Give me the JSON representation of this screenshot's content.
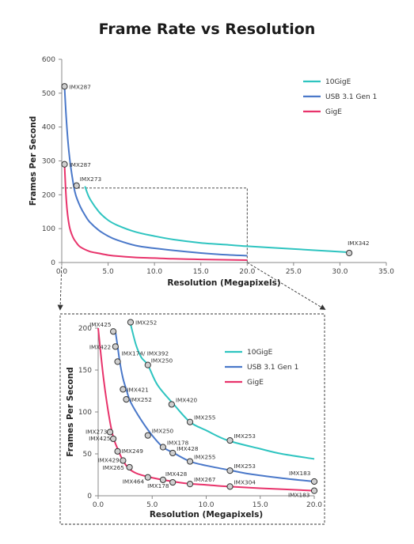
{
  "title": "Frame Rate vs Resolution",
  "colors": {
    "tengige": "#2ec4c0",
    "usb": "#4a78c9",
    "gige": "#e8336b"
  },
  "chart_data": [
    {
      "id": "main",
      "type": "line",
      "xlabel": "Resolution (Megapixels)",
      "ylabel": "Frames Per Second",
      "xlim": [
        0,
        35
      ],
      "ylim": [
        0,
        600
      ],
      "xticks": [
        "0.0",
        "5.0",
        "10.0",
        "15.0",
        "20.0",
        "25.0",
        "30.0",
        "35.0"
      ],
      "yticks": [
        "0",
        "100",
        "200",
        "300",
        "400",
        "500",
        "600"
      ],
      "legend_position": "top-right",
      "grid": false,
      "series": [
        {
          "name": "10GigE",
          "color": "#2ec4c0",
          "x": [
            2.5,
            3,
            4,
            5,
            6,
            8,
            10,
            12,
            15,
            18,
            20,
            25,
            28,
            31
          ],
          "y": [
            225,
            190,
            150,
            125,
            110,
            90,
            78,
            68,
            58,
            52,
            48,
            40,
            35,
            30
          ]
        },
        {
          "name": "USB 3.1 Gen 1",
          "color": "#4a78c9",
          "x": [
            0.3,
            0.5,
            0.8,
            1.2,
            1.5,
            2,
            2.5,
            3,
            4,
            5,
            6,
            8,
            10,
            12,
            15,
            17,
            20
          ],
          "y": [
            520,
            420,
            320,
            240,
            200,
            165,
            140,
            120,
            95,
            78,
            66,
            50,
            42,
            36,
            28,
            24,
            20
          ]
        },
        {
          "name": "GigE",
          "color": "#e8336b",
          "x": [
            0.3,
            0.5,
            0.8,
            1.2,
            1.6,
            2,
            3,
            4,
            5,
            6,
            8,
            10,
            12,
            15,
            20
          ],
          "y": [
            290,
            180,
            110,
            75,
            58,
            46,
            33,
            27,
            22,
            19,
            15,
            13,
            11,
            9,
            7
          ]
        }
      ],
      "points": [
        {
          "label": "IMX287",
          "x": 0.3,
          "y": 520
        },
        {
          "label": "IMX287",
          "x": 0.3,
          "y": 290
        },
        {
          "label": "IMX273",
          "x": 1.6,
          "y": 227
        },
        {
          "label": "IMX342",
          "x": 31,
          "y": 28
        }
      ]
    },
    {
      "id": "zoom",
      "type": "line",
      "xlabel": "Resolution (Megapixels)",
      "ylabel": "Frames Per Second",
      "xlim": [
        0,
        20
      ],
      "ylim": [
        0,
        200
      ],
      "xticks": [
        "0.0",
        "5.0",
        "10.0",
        "15.0",
        "20.0"
      ],
      "yticks": [
        "0",
        "50",
        "100",
        "150",
        "200"
      ],
      "legend_position": "top-right",
      "grid": false,
      "series": [
        {
          "name": "10GigE",
          "color": "#2ec4c0",
          "x": [
            3,
            3.5,
            4,
            4.6,
            5.5,
            7,
            8.5,
            10,
            12,
            15,
            17,
            20
          ],
          "y": [
            205,
            180,
            165,
            156,
            132,
            109,
            88,
            78,
            66,
            56,
            50,
            44
          ]
        },
        {
          "name": "USB 3.1 Gen 1",
          "color": "#4a78c9",
          "x": [
            1.6,
            1.8,
            2.0,
            2.3,
            2.6,
            3,
            4,
            5,
            6,
            7,
            8.5,
            10,
            12,
            14,
            17,
            20
          ],
          "y": [
            196,
            178,
            160,
            140,
            127,
            112,
            90,
            72,
            58,
            51,
            41,
            36,
            31,
            26,
            21,
            17
          ]
        },
        {
          "name": "GigE",
          "color": "#e8336b",
          "x": [
            0,
            0.5,
            1.0,
            1.4,
            1.8,
            2.3,
            2.8,
            3.5,
            4.5,
            6,
            8,
            10,
            12,
            15,
            20
          ],
          "y": [
            200,
            140,
            95,
            70,
            56,
            42,
            33,
            27,
            23,
            19,
            15,
            13,
            11,
            9,
            6
          ]
        }
      ],
      "points": [
        {
          "label": "IMX252",
          "x": 3.0,
          "y": 207
        },
        {
          "label": "IMX425",
          "x": 1.4,
          "y": 196
        },
        {
          "label": "IMX422",
          "x": 1.6,
          "y": 178
        },
        {
          "label": "IMX174/ IMX392",
          "x": 1.8,
          "y": 160
        },
        {
          "label": "IMX250",
          "x": 4.6,
          "y": 156
        },
        {
          "label": "IMX421",
          "x": 2.3,
          "y": 127
        },
        {
          "label": "IMX252",
          "x": 2.6,
          "y": 115
        },
        {
          "label": "IMX420",
          "x": 6.8,
          "y": 109
        },
        {
          "label": "IMX255",
          "x": 8.5,
          "y": 88
        },
        {
          "label": "IMX250",
          "x": 4.6,
          "y": 72
        },
        {
          "label": "IMX253",
          "x": 12.2,
          "y": 66
        },
        {
          "label": "IMX178",
          "x": 6.0,
          "y": 58
        },
        {
          "label": "IMX428",
          "x": 6.9,
          "y": 51
        },
        {
          "label": "IMX255",
          "x": 8.5,
          "y": 41
        },
        {
          "label": "IMX253",
          "x": 12.2,
          "y": 30
        },
        {
          "label": "IMX183",
          "x": 20.0,
          "y": 17
        },
        {
          "label": "IMX273",
          "x": 1.1,
          "y": 76
        },
        {
          "label": "IMX425",
          "x": 1.4,
          "y": 68
        },
        {
          "label": "IMX249",
          "x": 1.8,
          "y": 53
        },
        {
          "label": "IMX429",
          "x": 2.3,
          "y": 42
        },
        {
          "label": "IMX265",
          "x": 2.9,
          "y": 34
        },
        {
          "label": "IMX464",
          "x": 4.6,
          "y": 22
        },
        {
          "label": "IMX428",
          "x": 6.0,
          "y": 19
        },
        {
          "label": "IMX178",
          "x": 6.9,
          "y": 16
        },
        {
          "label": "IMX267",
          "x": 8.5,
          "y": 14
        },
        {
          "label": "IMX304",
          "x": 12.2,
          "y": 11
        },
        {
          "label": "IMX183",
          "x": 20.0,
          "y": 6
        }
      ]
    }
  ]
}
